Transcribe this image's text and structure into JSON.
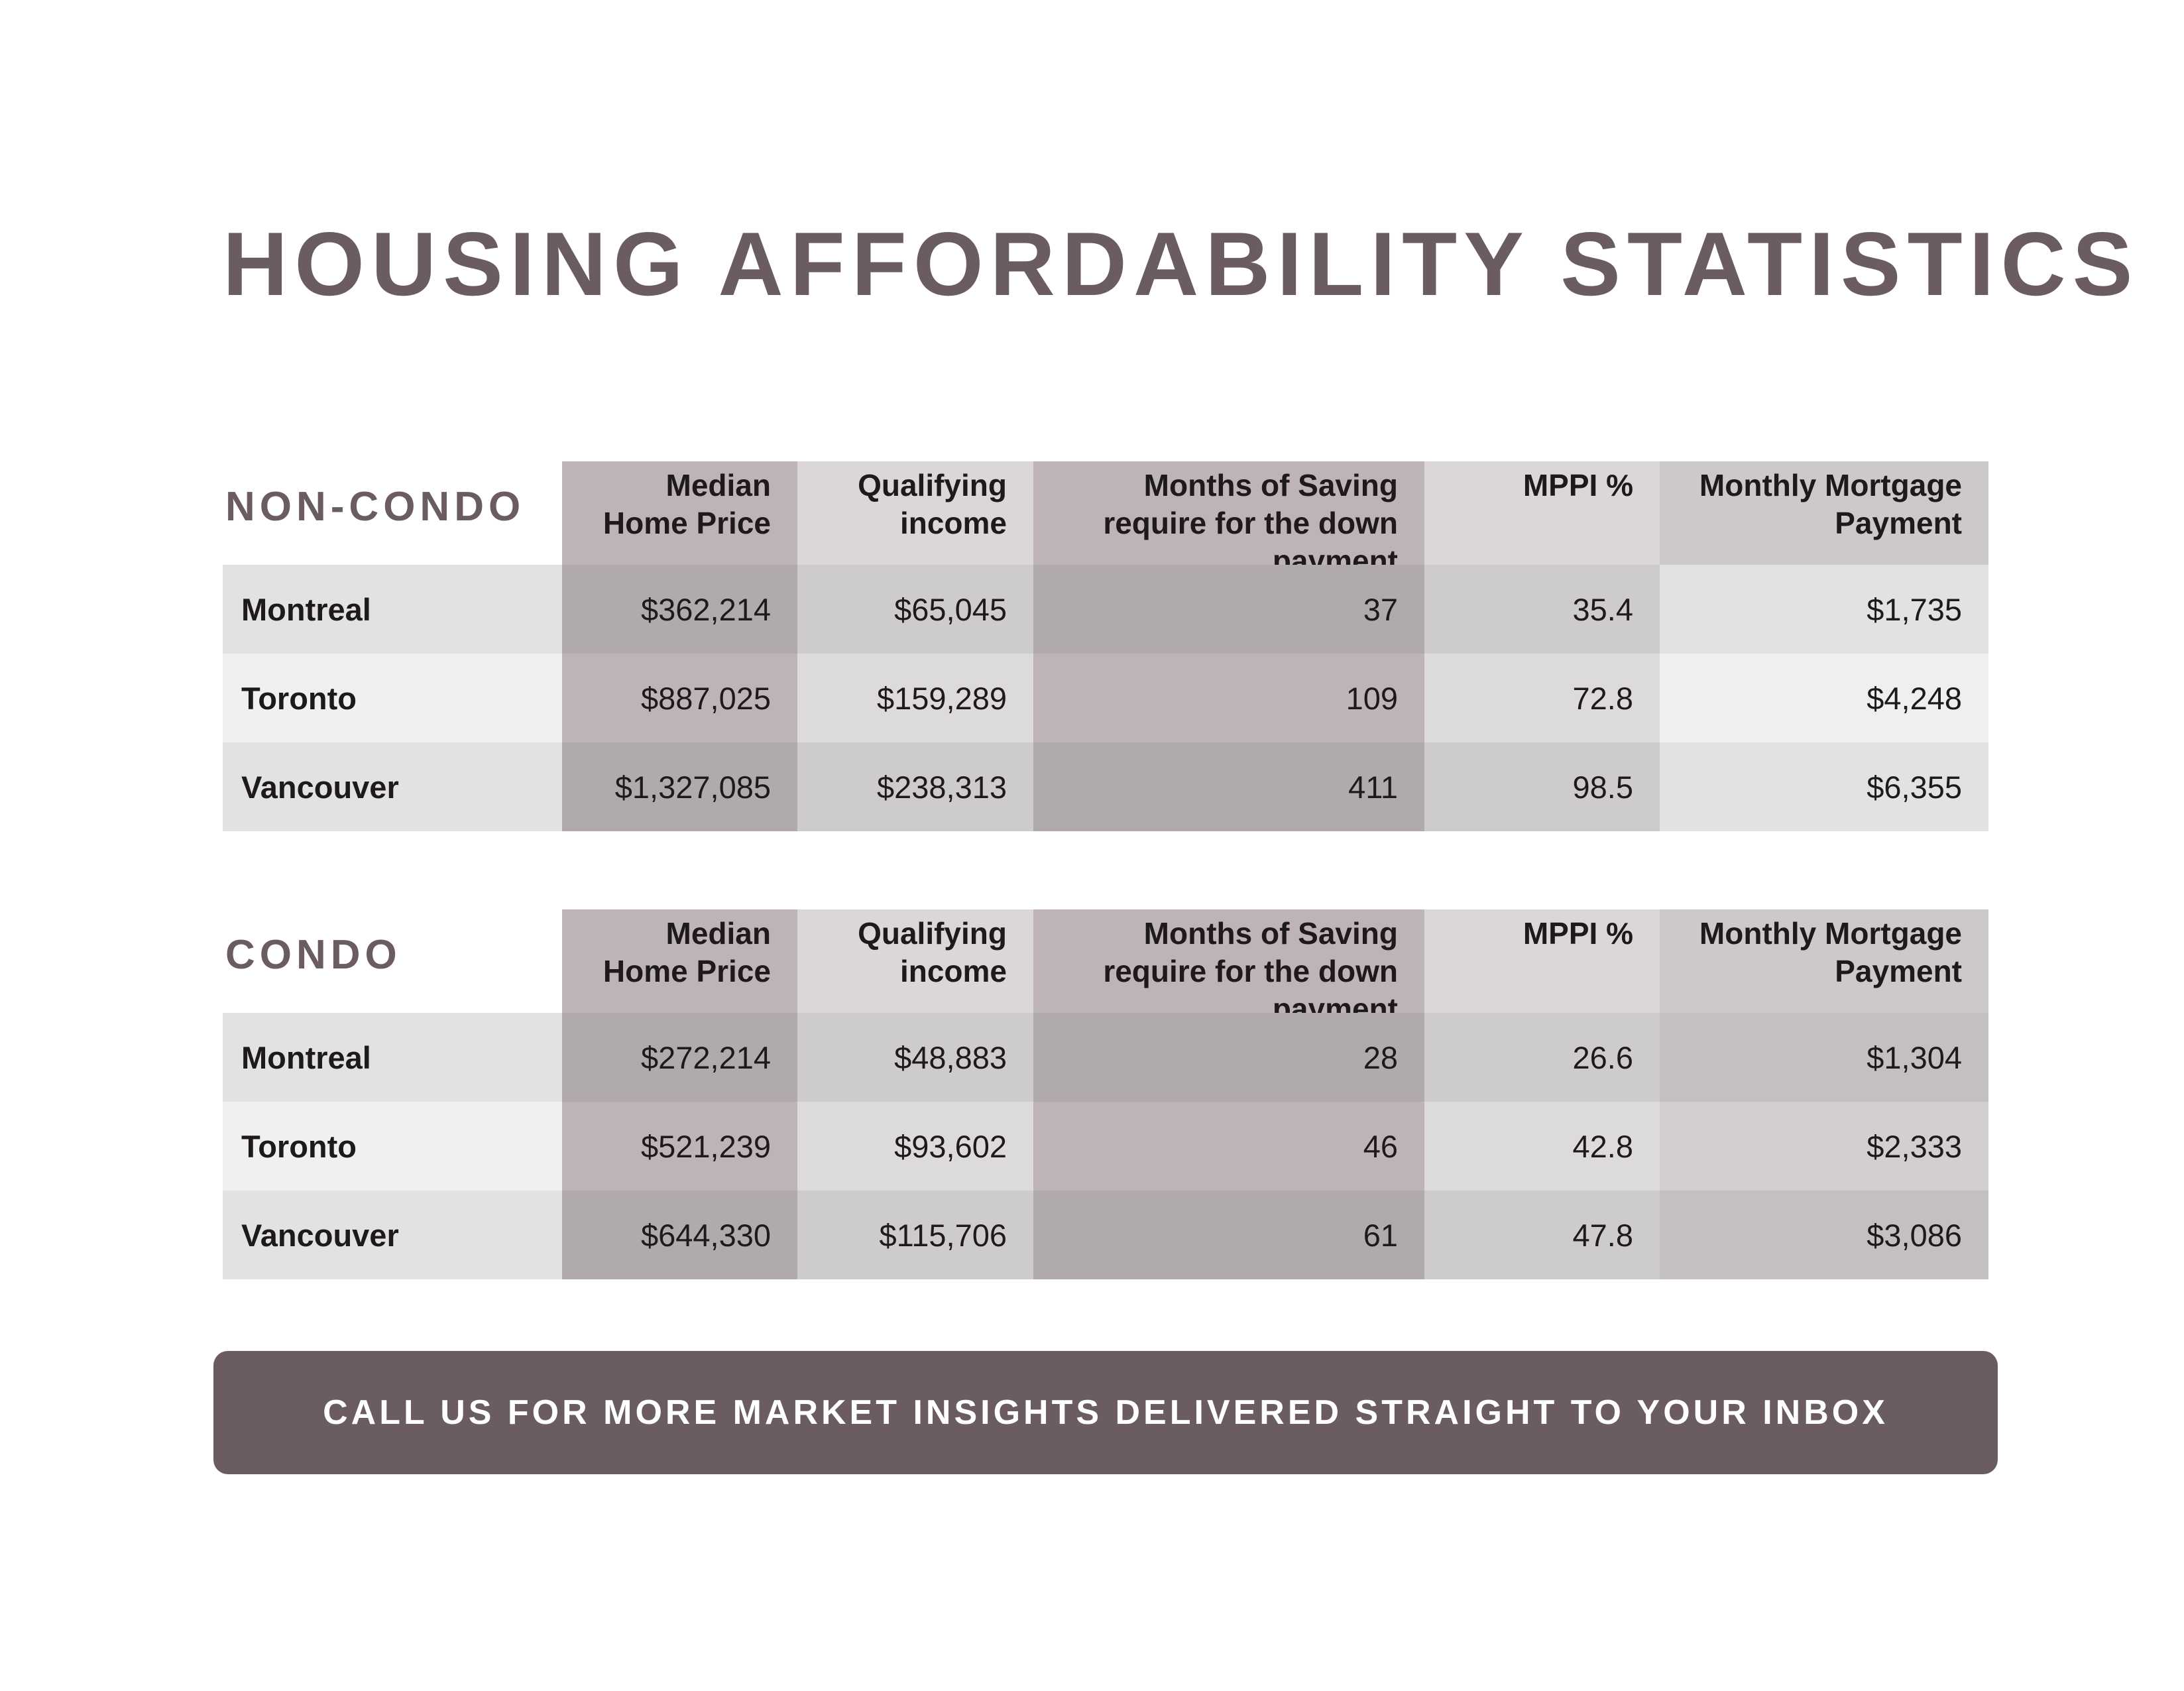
{
  "title": "HOUSING AFFORDABILITY STATISTICS",
  "columns": [
    "Median Home Price",
    "Qualifying income",
    "Months of Saving require for the down payment",
    "MPPI %",
    "Monthly Mortgage Payment"
  ],
  "non_condo": {
    "label": "NON-CONDO",
    "rows": [
      {
        "city": "Montreal",
        "values": [
          "$362,214",
          "$65,045",
          "37",
          "35.4",
          "$1,735"
        ]
      },
      {
        "city": "Toronto",
        "values": [
          "$887,025",
          "$159,289",
          "109",
          "72.8",
          "$4,248"
        ]
      },
      {
        "city": "Vancouver",
        "values": [
          "$1,327,085",
          "$238,313",
          "411",
          "98.5",
          "$6,355"
        ]
      }
    ]
  },
  "condo": {
    "label": "CONDO",
    "rows": [
      {
        "city": "Montreal",
        "values": [
          "$272,214",
          "$48,883",
          "28",
          "26.6",
          "$1,304"
        ]
      },
      {
        "city": "Toronto",
        "values": [
          "$521,239",
          "$93,602",
          "46",
          "42.8",
          "$2,333"
        ]
      },
      {
        "city": "Vancouver",
        "values": [
          "$644,330",
          "$115,706",
          "61",
          "47.8",
          "$3,086"
        ]
      }
    ]
  },
  "cta": "CALL US FOR MORE MARKET INSIGHTS DELIVERED STRAIGHT TO YOUR INBOX",
  "colors": {
    "accent": "#6a5c5f"
  }
}
